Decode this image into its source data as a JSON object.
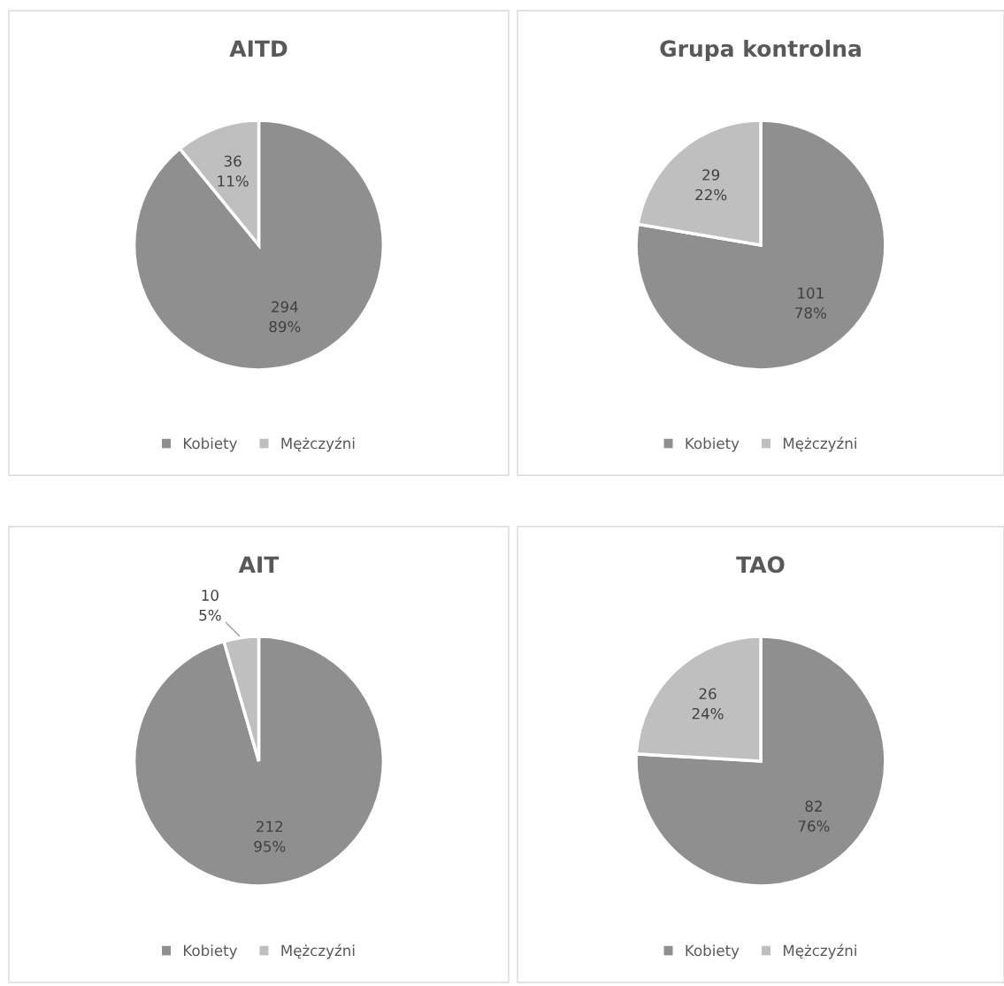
{
  "chart_data": [
    {
      "type": "pie",
      "title": "AITD",
      "categories": [
        "Kobiety",
        "Mężczyźni"
      ],
      "values": [
        294,
        36
      ],
      "value_labels": [
        "294\n89%",
        "36\n11%"
      ],
      "colors": [
        "#8f8f8f",
        "#bfbfbf"
      ],
      "legend": "bottom"
    },
    {
      "type": "pie",
      "title": "Grupa kontrolna",
      "categories": [
        "Kobiety",
        "Mężczyźni"
      ],
      "values": [
        101,
        29
      ],
      "value_labels": [
        "101\n78%",
        "29\n22%"
      ],
      "colors": [
        "#8f8f8f",
        "#bfbfbf"
      ],
      "legend": "bottom"
    },
    {
      "type": "pie",
      "title": "AIT",
      "categories": [
        "Kobiety",
        "Mężczyźni"
      ],
      "values": [
        212,
        10
      ],
      "value_labels": [
        "212\n95%",
        "10\n5%"
      ],
      "colors": [
        "#8f8f8f",
        "#bfbfbf"
      ],
      "legend": "bottom"
    },
    {
      "type": "pie",
      "title": "TAO",
      "categories": [
        "Kobiety",
        "Mężczyźni"
      ],
      "values": [
        82,
        26
      ],
      "value_labels": [
        "82\n76%",
        "26\n24%"
      ],
      "colors": [
        "#8f8f8f",
        "#bfbfbf"
      ],
      "legend": "bottom"
    }
  ]
}
